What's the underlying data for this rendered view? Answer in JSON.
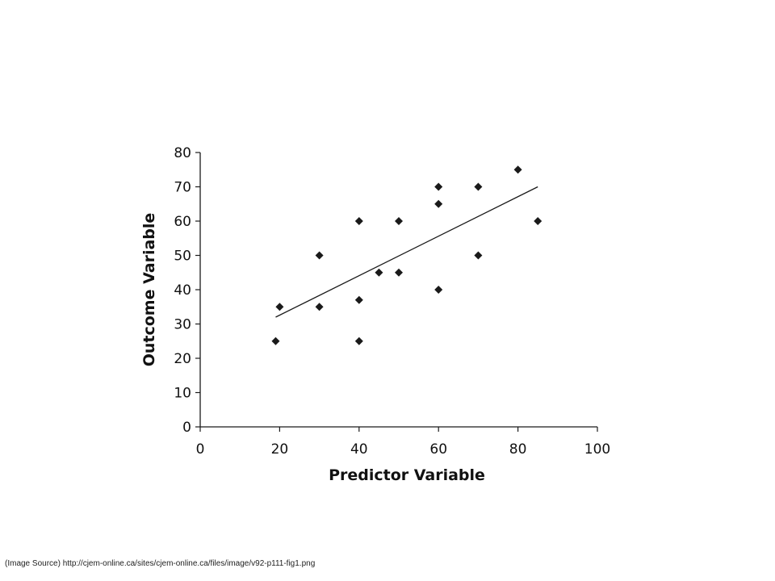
{
  "source_note": "(Image Source) http://cjem-online.ca/sites/cjem-online.ca/files/image/v92-p111-fig1.png",
  "chart_data": {
    "type": "scatter",
    "title": "",
    "xlabel": "Predictor Variable",
    "ylabel": "Outcome Variable",
    "xlim": [
      0,
      100
    ],
    "ylim": [
      0,
      80
    ],
    "xticks": [
      0,
      20,
      40,
      60,
      80,
      100
    ],
    "yticks": [
      0,
      10,
      20,
      30,
      40,
      50,
      60,
      70,
      80
    ],
    "xtick_labels": [
      "0",
      "20",
      "40",
      "60",
      "80",
      "100"
    ],
    "ytick_labels": [
      "0",
      "10",
      "20",
      "30",
      "40",
      "50",
      "60",
      "70",
      "80"
    ],
    "grid": false,
    "marker": "diamond",
    "marker_color": "#1a1a1a",
    "points": [
      {
        "x": 19,
        "y": 25
      },
      {
        "x": 20,
        "y": 35
      },
      {
        "x": 30,
        "y": 50
      },
      {
        "x": 30,
        "y": 35
      },
      {
        "x": 40,
        "y": 60
      },
      {
        "x": 40,
        "y": 37
      },
      {
        "x": 40,
        "y": 25
      },
      {
        "x": 45,
        "y": 45
      },
      {
        "x": 50,
        "y": 60
      },
      {
        "x": 50,
        "y": 45
      },
      {
        "x": 60,
        "y": 70
      },
      {
        "x": 60,
        "y": 65
      },
      {
        "x": 60,
        "y": 40
      },
      {
        "x": 70,
        "y": 70
      },
      {
        "x": 70,
        "y": 50
      },
      {
        "x": 80,
        "y": 75
      },
      {
        "x": 85,
        "y": 60
      }
    ],
    "trendline": {
      "type": "linear",
      "x": [
        19,
        85
      ],
      "y": [
        32,
        70
      ],
      "color": "#1a1a1a"
    }
  }
}
